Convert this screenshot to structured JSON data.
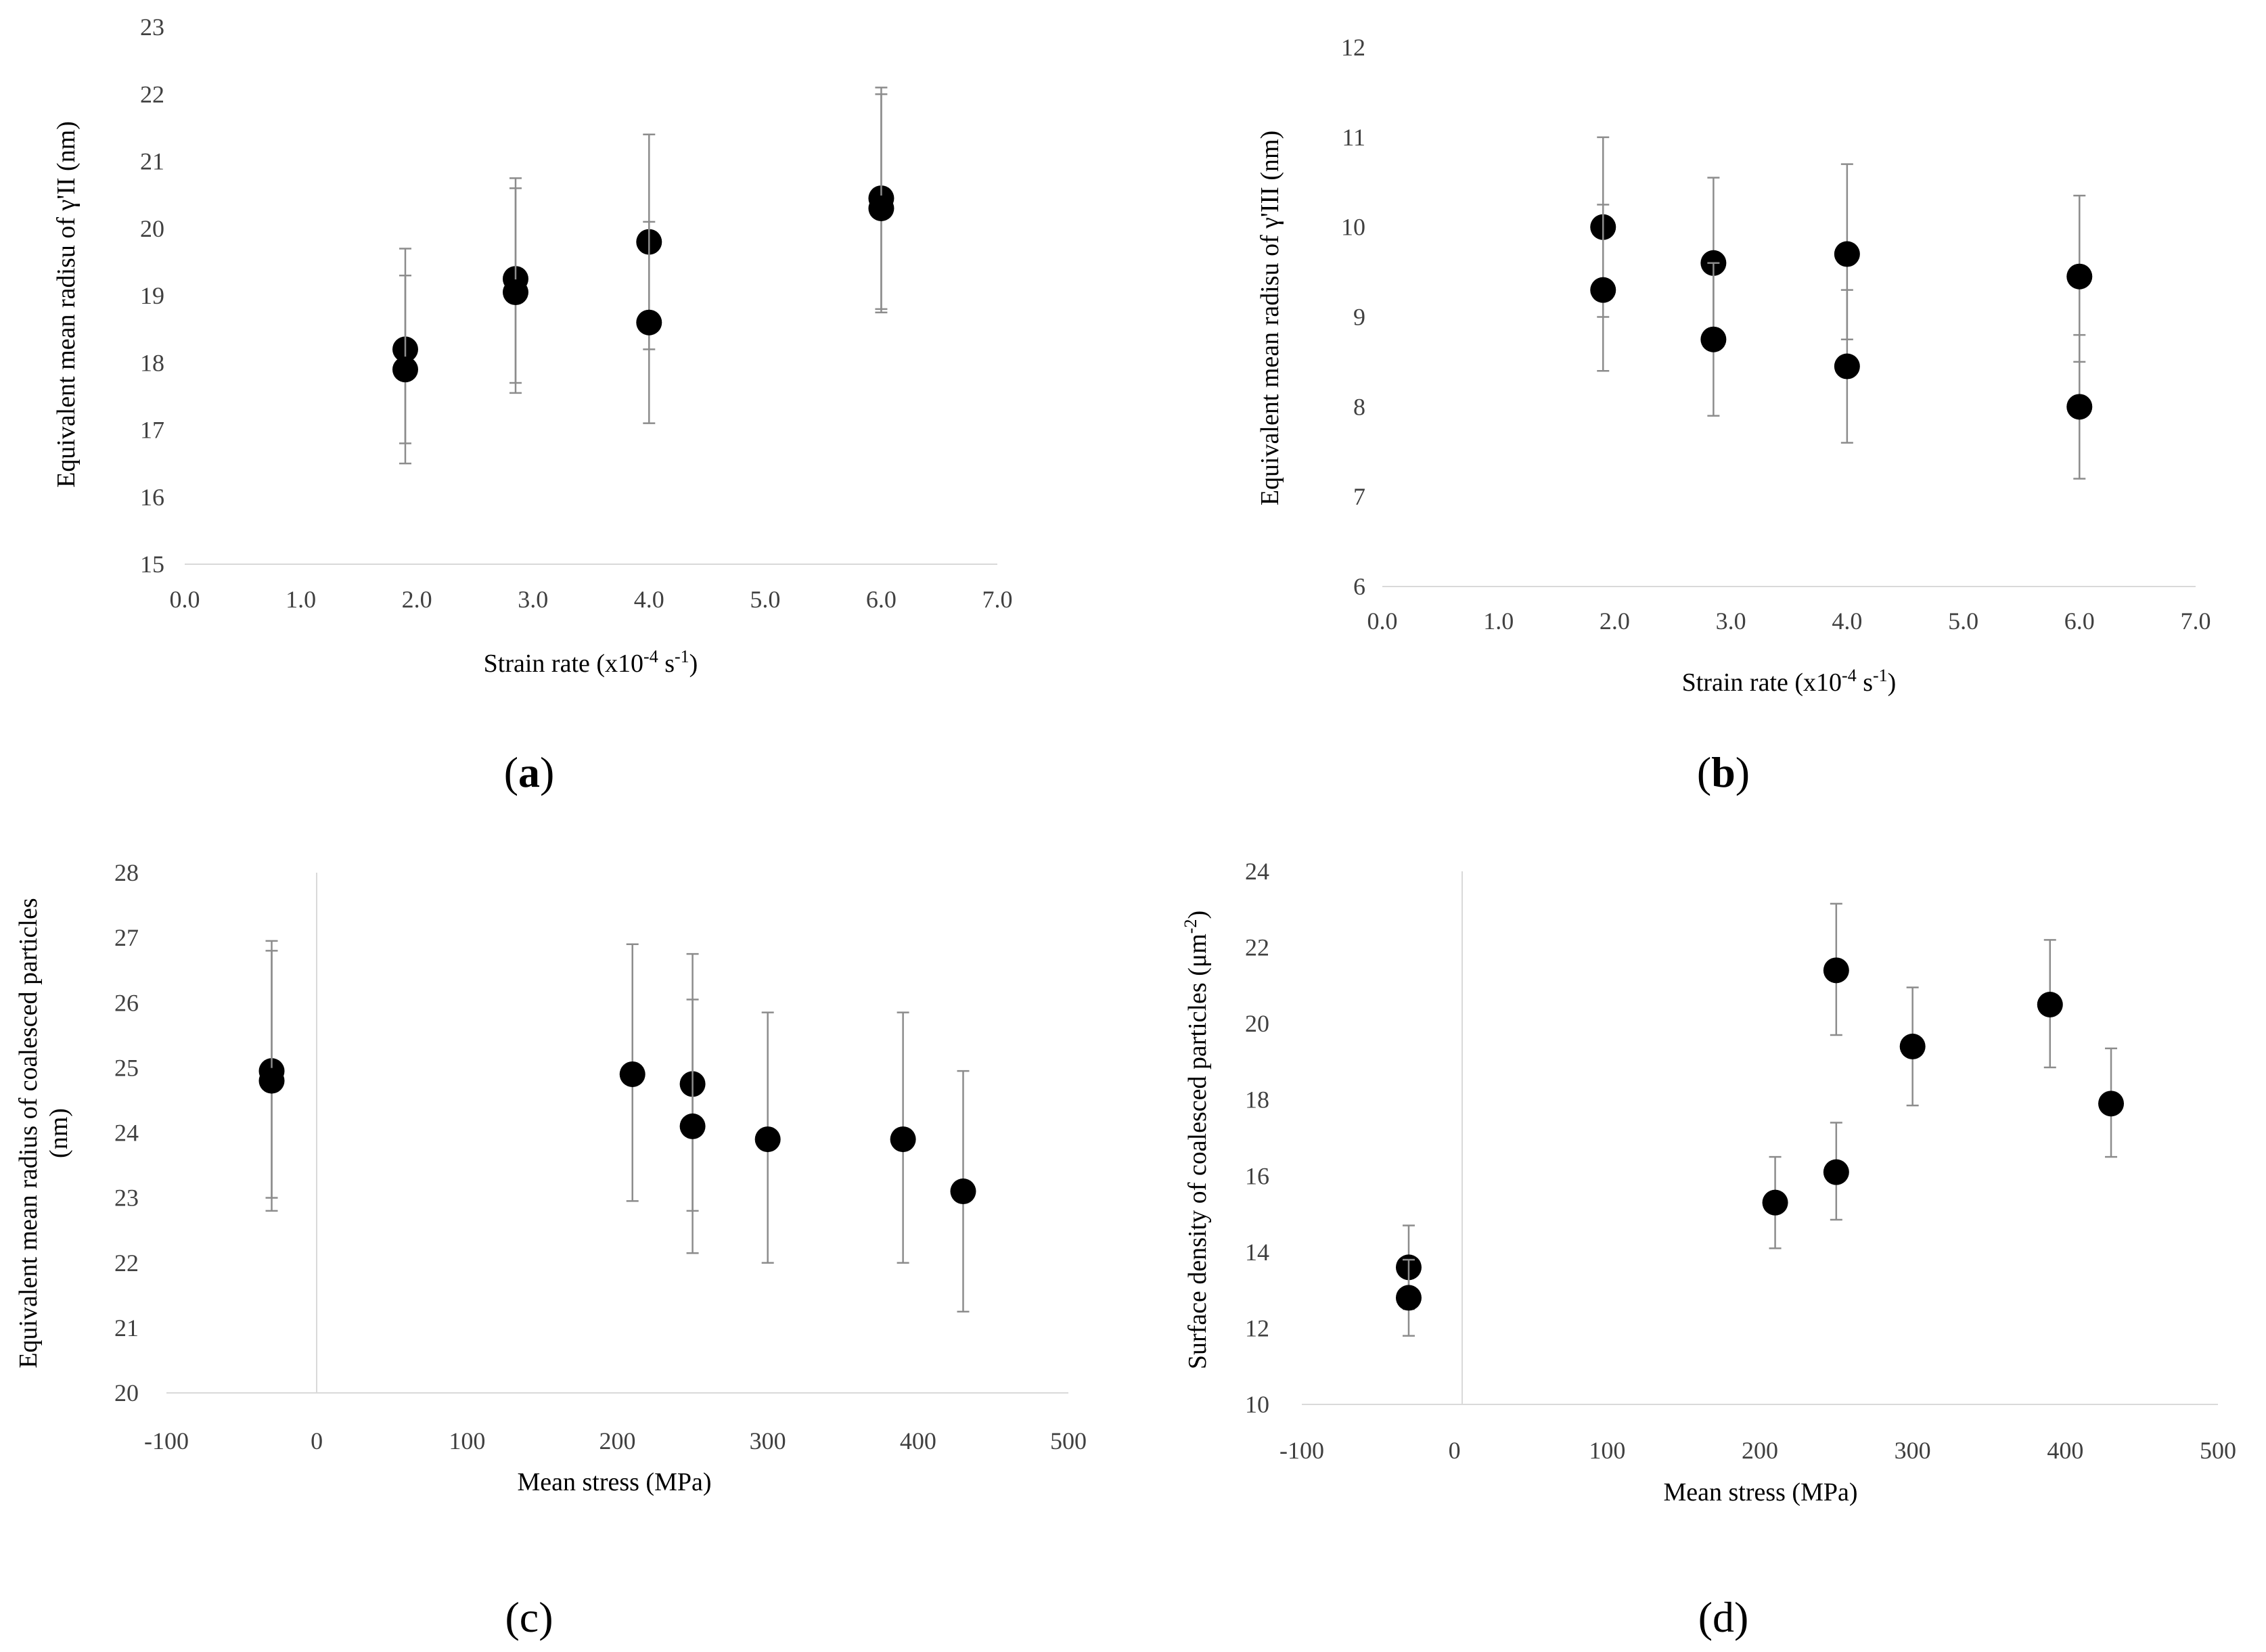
{
  "chart_data": [
    {
      "panel_label": "a",
      "type": "scatter",
      "xlabel": "Strain rate  (x10",
      "xlabel_exp": "-4",
      "xlabel_unit": " s",
      "xlabel_unit_exp": "-1",
      "xlabel_end": ")",
      "ylabel": "Equivalent mean radisu of γ'II (nm)",
      "xlim": [
        0,
        7
      ],
      "ylim": [
        15,
        23
      ],
      "xticks": [
        "0.0",
        "1.0",
        "2.0",
        "3.0",
        "4.0",
        "5.0",
        "6.0",
        "7.0"
      ],
      "yticks": [
        "15",
        "16",
        "17",
        "18",
        "19",
        "20",
        "21",
        "22",
        "23"
      ],
      "points": [
        {
          "x": 1.9,
          "y": 18.2,
          "lo": 16.8,
          "hi": 19.7
        },
        {
          "x": 1.9,
          "y": 17.9,
          "lo": 16.5,
          "hi": 19.3
        },
        {
          "x": 2.85,
          "y": 19.25,
          "lo": 17.7,
          "hi": 20.75
        },
        {
          "x": 2.85,
          "y": 19.05,
          "lo": 17.55,
          "hi": 20.6
        },
        {
          "x": 4.0,
          "y": 19.8,
          "lo": 18.2,
          "hi": 21.4
        },
        {
          "x": 4.0,
          "y": 18.6,
          "lo": 17.1,
          "hi": 20.1
        },
        {
          "x": 6.0,
          "y": 20.45,
          "lo": 18.8,
          "hi": 22.1
        },
        {
          "x": 6.0,
          "y": 20.3,
          "lo": 18.75,
          "hi": 22.0
        }
      ]
    },
    {
      "panel_label": "b",
      "type": "scatter",
      "xlabel": "Strain rate  (x10",
      "xlabel_exp": "-4",
      "xlabel_unit": " s",
      "xlabel_unit_exp": "-1",
      "xlabel_end": ")",
      "ylabel": "Equivalent mean radisu of γ'III (nm)",
      "xlim": [
        0,
        7
      ],
      "ylim": [
        6,
        12
      ],
      "xticks": [
        "0.0",
        "1.0",
        "2.0",
        "3.0",
        "4.0",
        "5.0",
        "6.0",
        "7.0"
      ],
      "yticks": [
        "6",
        "7",
        "8",
        "9",
        "10",
        "11",
        "12"
      ],
      "points": [
        {
          "x": 1.9,
          "y": 10.0,
          "lo": 9.0,
          "hi": 11.0
        },
        {
          "x": 1.9,
          "y": 9.3,
          "lo": 8.4,
          "hi": 10.25
        },
        {
          "x": 2.85,
          "y": 9.6,
          "lo": 8.65,
          "hi": 10.55
        },
        {
          "x": 2.85,
          "y": 8.75,
          "lo": 7.9,
          "hi": 9.6
        },
        {
          "x": 4.0,
          "y": 9.7,
          "lo": 8.75,
          "hi": 10.7
        },
        {
          "x": 4.0,
          "y": 8.45,
          "lo": 7.6,
          "hi": 9.3
        },
        {
          "x": 6.0,
          "y": 9.45,
          "lo": 8.5,
          "hi": 10.35
        },
        {
          "x": 6.0,
          "y": 8.0,
          "lo": 7.2,
          "hi": 8.8
        }
      ]
    },
    {
      "panel_label": "c",
      "type": "scatter",
      "xlabel": "Mean stress (MPa)",
      "ylabel_lines": [
        "Equivalent mean radius of coalesced particles",
        "(nm)"
      ],
      "xlim": [
        -100,
        500
      ],
      "ylim": [
        20,
        28
      ],
      "xticks": [
        "-100",
        "0",
        "100",
        "200",
        "300",
        "400",
        "500"
      ],
      "yticks": [
        "20",
        "21",
        "22",
        "23",
        "24",
        "25",
        "26",
        "27",
        "28"
      ],
      "points": [
        {
          "x": -30,
          "y": 24.95,
          "lo": 23.0,
          "hi": 26.95
        },
        {
          "x": -30,
          "y": 24.8,
          "lo": 22.8,
          "hi": 26.8
        },
        {
          "x": 210,
          "y": 24.9,
          "lo": 22.95,
          "hi": 26.9
        },
        {
          "x": 250,
          "y": 24.75,
          "lo": 22.8,
          "hi": 26.75
        },
        {
          "x": 250,
          "y": 24.1,
          "lo": 22.15,
          "hi": 26.05
        },
        {
          "x": 300,
          "y": 23.9,
          "lo": 22.0,
          "hi": 25.85
        },
        {
          "x": 390,
          "y": 23.9,
          "lo": 22.0,
          "hi": 25.85
        },
        {
          "x": 430,
          "y": 23.1,
          "lo": 21.25,
          "hi": 24.95
        }
      ]
    },
    {
      "panel_label": "d",
      "type": "scatter",
      "xlabel": "Mean stress (MPa)",
      "ylabel": "Surface density of coalesced particles (μm",
      "ylabel_exp": "-2",
      "ylabel_end": ")",
      "xlim": [
        -100,
        500
      ],
      "ylim": [
        10,
        24
      ],
      "xticks": [
        "-100",
        "0",
        "100",
        "200",
        "300",
        "400",
        "500"
      ],
      "yticks": [
        "10",
        "12",
        "14",
        "16",
        "18",
        "20",
        "22",
        "24"
      ],
      "points": [
        {
          "x": -30,
          "y": 13.6,
          "lo": 12.5,
          "hi": 14.7
        },
        {
          "x": -30,
          "y": 12.8,
          "lo": 11.8,
          "hi": 13.8
        },
        {
          "x": 210,
          "y": 15.3,
          "lo": 14.1,
          "hi": 16.5
        },
        {
          "x": 250,
          "y": 21.4,
          "lo": 19.7,
          "hi": 23.15
        },
        {
          "x": 250,
          "y": 16.1,
          "lo": 14.85,
          "hi": 17.4
        },
        {
          "x": 300,
          "y": 19.4,
          "lo": 17.85,
          "hi": 20.95
        },
        {
          "x": 390,
          "y": 20.5,
          "lo": 18.85,
          "hi": 22.2
        },
        {
          "x": 430,
          "y": 17.9,
          "lo": 16.5,
          "hi": 19.35
        }
      ]
    }
  ]
}
